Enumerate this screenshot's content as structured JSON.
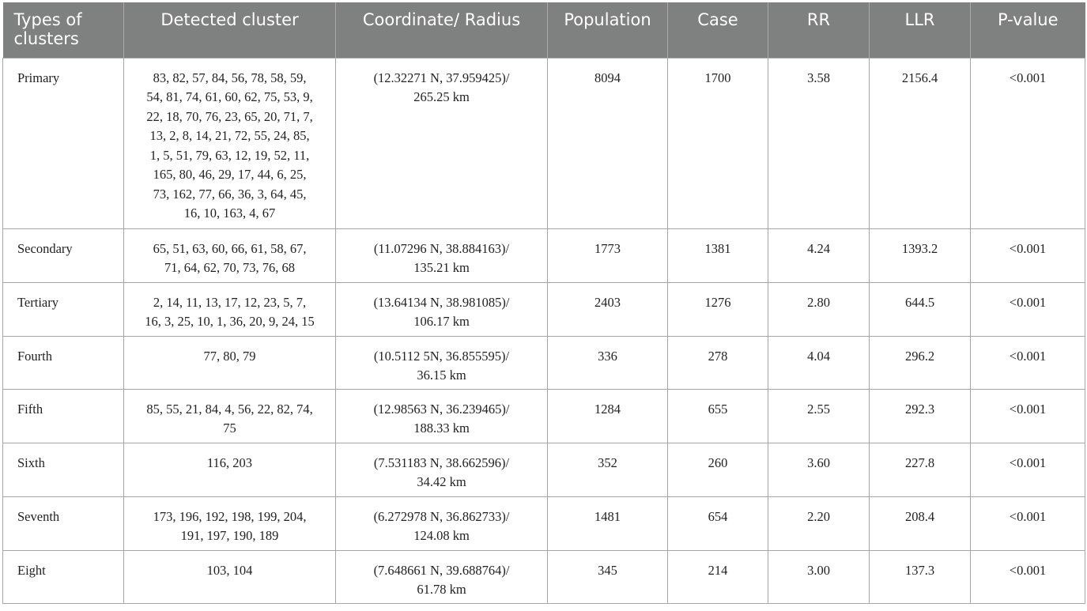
{
  "table": {
    "headers": [
      {
        "line1": "Types of",
        "line2": "clusters"
      },
      {
        "line1": "Detected cluster",
        "line2": ""
      },
      {
        "line1": "Coordinate/ Radius",
        "line2": ""
      },
      {
        "line1": "Population",
        "line2": ""
      },
      {
        "line1": "Case",
        "line2": ""
      },
      {
        "line1": "RR",
        "line2": ""
      },
      {
        "line1": "LLR",
        "line2": ""
      },
      {
        "line1": "P-value",
        "line2": ""
      }
    ],
    "rows": [
      {
        "type": "Primary",
        "cluster_lines": [
          "83, 82, 57, 84, 56, 78, 58, 59,",
          "54, 81, 74, 61, 60, 62, 75, 53, 9,",
          "22, 18, 70, 76, 23, 65, 20, 71, 7,",
          "13, 2, 8, 14, 21, 72, 55, 24, 85,",
          "1, 5, 51, 79, 63, 12, 19, 52, 11,",
          "165, 80, 46, 29, 17, 44, 6, 25,",
          "73, 162, 77, 66, 36, 3, 64, 45,",
          "16, 10, 163, 4, 67"
        ],
        "coordinate": "(12.32271 N, 37.959425)/",
        "radius": "265.25 km",
        "population": "8094",
        "case": "1700",
        "rr": "3.58",
        "llr": "2156.4",
        "p_value": "<0.001"
      },
      {
        "type": "Secondary",
        "cluster_lines": [
          "65, 51, 63, 60, 66, 61, 58, 67,",
          "71, 64, 62, 70, 73, 76, 68"
        ],
        "coordinate": "(11.07296 N, 38.884163)/",
        "radius": "135.21 km",
        "population": "1773",
        "case": "1381",
        "rr": "4.24",
        "llr": "1393.2",
        "p_value": "<0.001"
      },
      {
        "type": "Tertiary",
        "cluster_lines": [
          "2, 14, 11, 13, 17, 12, 23, 5, 7,",
          "16, 3, 25, 10, 1, 36, 20, 9, 24, 15"
        ],
        "coordinate": "(13.64134 N, 38.981085)/",
        "radius": "106.17 km",
        "population": "2403",
        "case": "1276",
        "rr": "2.80",
        "llr": "644.5",
        "p_value": "<0.001"
      },
      {
        "type": "Fourth",
        "cluster_lines": [
          "77, 80, 79"
        ],
        "coordinate": "(10.5112 5N, 36.855595)/",
        "radius": "36.15 km",
        "population": "336",
        "case": "278",
        "rr": "4.04",
        "llr": "296.2",
        "p_value": "<0.001"
      },
      {
        "type": "Fifth",
        "cluster_lines": [
          "85, 55, 21, 84, 4, 56, 22, 82, 74,",
          "75"
        ],
        "coordinate": "(12.98563 N, 36.239465)/",
        "radius": "188.33 km",
        "population": "1284",
        "case": "655",
        "rr": "2.55",
        "llr": "292.3",
        "p_value": "<0.001"
      },
      {
        "type": "Sixth",
        "cluster_lines": [
          "116, 203"
        ],
        "coordinate": "(7.531183 N, 38.662596)/",
        "radius": "34.42 km",
        "population": "352",
        "case": "260",
        "rr": "3.60",
        "llr": "227.8",
        "p_value": "<0.001"
      },
      {
        "type": "Seventh",
        "cluster_lines": [
          "173, 196, 192, 198, 199, 204,",
          "191, 197, 190, 189"
        ],
        "coordinate": "(6.272978 N, 36.862733)/",
        "radius": "124.08 km",
        "population": "1481",
        "case": "654",
        "rr": "2.20",
        "llr": "208.4",
        "p_value": "<0.001"
      },
      {
        "type": "Eight",
        "cluster_lines": [
          "103, 104"
        ],
        "coordinate": "(7.648661 N, 39.688764)/",
        "radius": "61.78 km",
        "population": "345",
        "case": "214",
        "rr": "3.00",
        "llr": "137.3",
        "p_value": "<0.001"
      }
    ]
  }
}
